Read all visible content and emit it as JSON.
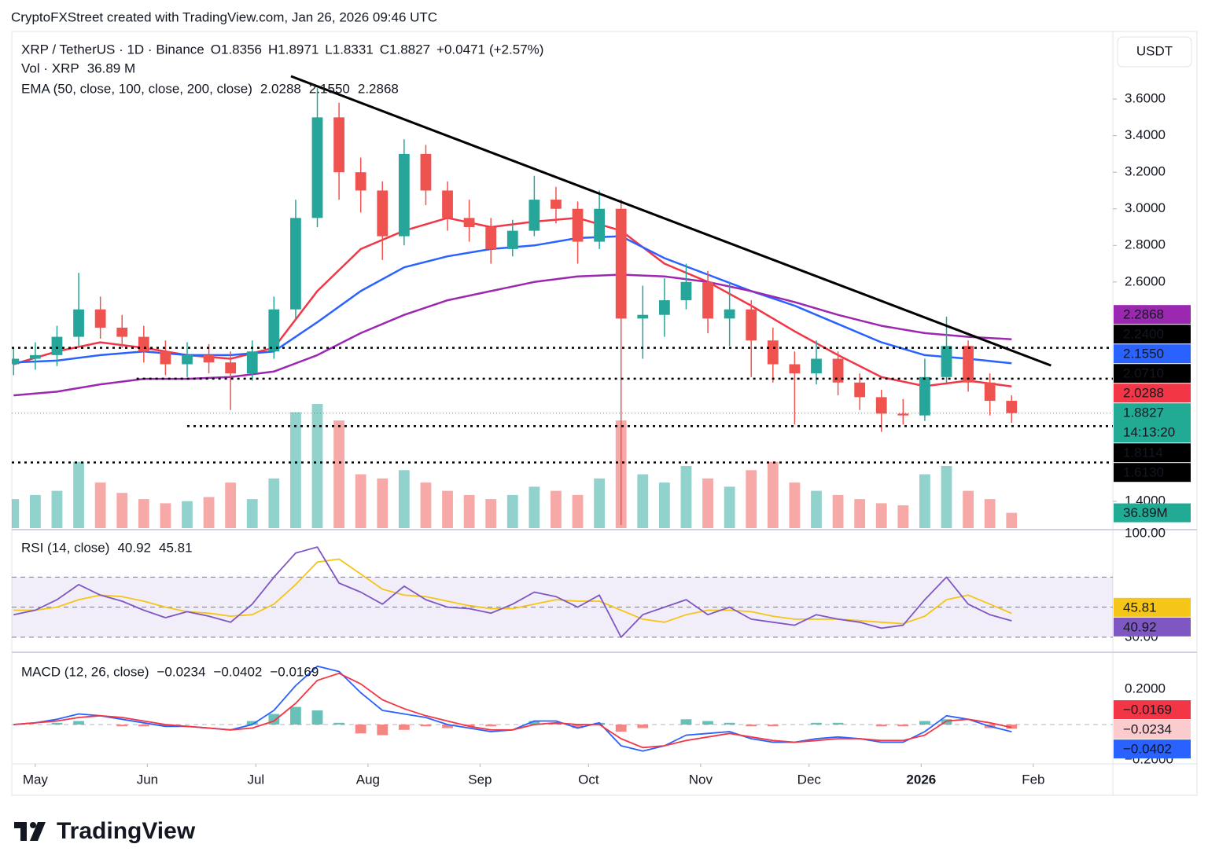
{
  "header": {
    "text": "CryptoFXStreet created with TradingView.com, Jan 26, 2026 09:46 UTC"
  },
  "footer": {
    "logo_text": "TradingView"
  },
  "chart_data": [
    {
      "type": "candlestick",
      "title": "XRP / TetherUS · 1D · Binance",
      "ohlc": [
        {
          "key": "O",
          "value": 1.8356
        },
        {
          "key": "H",
          "value": 1.8971
        },
        {
          "key": "L",
          "value": 1.8331
        },
        {
          "key": "C",
          "value": 1.8827
        }
      ],
      "change": {
        "value": 0.0471,
        "label": "+0.0471"
      },
      "change_pct": {
        "value": 2.57,
        "label": "(+2.57%)"
      },
      "currency": "USDT",
      "countdown": "14:13:20",
      "last_price": {
        "value": 1.8827,
        "label": "1.8827"
      },
      "up_color": "#26a69a",
      "down_color": "#ef5350",
      "legend_color": "#089981",
      "last_color": "#22ab94",
      "grid": false,
      "xlim": [
        -6.5,
        298
      ],
      "xticks": [
        {
          "value": 0,
          "label": "May"
        },
        {
          "value": 31,
          "label": "Jun"
        },
        {
          "value": 61,
          "label": "Jul"
        },
        {
          "value": 92,
          "label": "Aug"
        },
        {
          "value": 123,
          "label": "Sep"
        },
        {
          "value": 153,
          "label": "Oct"
        },
        {
          "value": 184,
          "label": "Nov"
        },
        {
          "value": 214,
          "label": "Dec"
        },
        {
          "value": 245,
          "label": "2026"
        },
        {
          "value": 276,
          "label": "Feb"
        }
      ],
      "ylim": [
        1.254,
        3.97
      ],
      "yticks": [
        {
          "value": 1.4,
          "label": "1.4000"
        },
        {
          "value": 2.6,
          "label": "2.6000"
        },
        {
          "value": 2.8,
          "label": "2.8000"
        },
        {
          "value": 3.0,
          "label": "3.0000"
        },
        {
          "value": 3.2,
          "label": "3.2000"
        },
        {
          "value": 3.4,
          "label": "3.4000"
        },
        {
          "value": 3.6,
          "label": "3.6000"
        }
      ],
      "x": [
        -6,
        0,
        6,
        12,
        18,
        24,
        30,
        36,
        42,
        48,
        54,
        60,
        66,
        72,
        78,
        84,
        90,
        96,
        102,
        108,
        114,
        120,
        126,
        132,
        138,
        144,
        150,
        156,
        162,
        168,
        174,
        180,
        186,
        192,
        198,
        204,
        210,
        216,
        222,
        228,
        234,
        240,
        246,
        252,
        258,
        264,
        270
      ],
      "open": [
        2.15,
        2.18,
        2.2,
        2.3,
        2.45,
        2.35,
        2.3,
        2.22,
        2.15,
        2.2,
        2.16,
        2.1,
        2.22,
        2.45,
        2.95,
        3.5,
        3.2,
        3.1,
        2.85,
        3.3,
        3.1,
        2.95,
        2.9,
        2.78,
        2.88,
        3.05,
        3.0,
        2.82,
        3.0,
        2.4,
        2.42,
        2.5,
        2.6,
        2.4,
        2.45,
        2.28,
        2.15,
        2.1,
        2.18,
        2.05,
        1.97,
        1.88,
        1.87,
        2.08,
        2.25,
        2.05,
        1.95
      ],
      "high": [
        2.24,
        2.27,
        2.36,
        2.65,
        2.52,
        2.42,
        2.36,
        2.28,
        2.27,
        2.26,
        2.22,
        2.28,
        2.52,
        3.05,
        3.66,
        3.58,
        3.28,
        3.15,
        3.38,
        3.35,
        3.15,
        3.05,
        2.95,
        2.94,
        3.18,
        3.12,
        3.04,
        3.1,
        3.05,
        2.58,
        2.62,
        2.7,
        2.66,
        2.6,
        2.5,
        2.35,
        2.22,
        2.28,
        2.22,
        2.1,
        2.01,
        1.96,
        2.18,
        2.41,
        2.28,
        2.1,
        1.98
      ],
      "low": [
        2.09,
        2.12,
        2.14,
        2.25,
        2.29,
        2.24,
        2.16,
        2.09,
        2.08,
        2.1,
        1.9,
        2.06,
        2.18,
        2.4,
        2.9,
        3.05,
        2.98,
        2.72,
        2.8,
        3.02,
        2.88,
        2.82,
        2.7,
        2.74,
        2.85,
        2.92,
        2.7,
        2.78,
        1.27,
        2.18,
        2.3,
        2.45,
        2.32,
        2.25,
        2.08,
        2.05,
        1.82,
        2.04,
        1.98,
        1.9,
        1.78,
        1.82,
        1.84,
        2.05,
        2.0,
        1.87,
        1.83
      ],
      "close": [
        2.18,
        2.2,
        2.3,
        2.45,
        2.35,
        2.3,
        2.22,
        2.15,
        2.2,
        2.16,
        2.1,
        2.22,
        2.45,
        2.95,
        3.5,
        3.2,
        3.1,
        2.85,
        3.3,
        3.1,
        2.95,
        2.9,
        2.78,
        2.88,
        3.05,
        3.0,
        2.82,
        3.0,
        2.4,
        2.42,
        2.5,
        2.6,
        2.4,
        2.45,
        2.28,
        2.15,
        2.1,
        2.18,
        2.05,
        1.97,
        1.88,
        1.87,
        2.08,
        2.25,
        2.05,
        1.95,
        1.8827
      ],
      "volume": {
        "title": "Vol · XRP",
        "last": {
          "value": 36.89,
          "label": "36.89 M"
        },
        "axis_label": {
          "value": 36.89,
          "label": "36.89M"
        },
        "vlim": [
          0,
          1200
        ],
        "values": [
          70,
          80,
          90,
          160,
          110,
          85,
          70,
          60,
          65,
          75,
          110,
          70,
          120,
          280,
          300,
          260,
          130,
          120,
          140,
          110,
          90,
          80,
          70,
          80,
          100,
          90,
          80,
          120,
          260,
          130,
          110,
          150,
          120,
          100,
          140,
          160,
          110,
          90,
          80,
          70,
          60,
          55,
          130,
          150,
          90,
          70,
          36.89
        ]
      },
      "ema": {
        "title": "EMA (50, close, 100, close, 200, close)",
        "x": [
          -6,
          6,
          18,
          30,
          42,
          54,
          66,
          78,
          90,
          102,
          114,
          126,
          138,
          150,
          162,
          174,
          186,
          198,
          210,
          222,
          234,
          246,
          258,
          270
        ],
        "series": [
          {
            "color": "#f23645",
            "last": {
              "value": 2.0288,
              "label": "2.0288"
            },
            "values": [
              2.15,
              2.22,
              2.27,
              2.24,
              2.2,
              2.18,
              2.24,
              2.55,
              2.78,
              2.88,
              2.95,
              2.9,
              2.93,
              2.95,
              2.88,
              2.7,
              2.6,
              2.47,
              2.33,
              2.2,
              2.08,
              2.03,
              2.06,
              2.0288
            ]
          },
          {
            "color": "#2962ff",
            "last": {
              "value": 2.155,
              "label": "2.1550"
            },
            "values": [
              2.16,
              2.17,
              2.2,
              2.22,
              2.2,
              2.2,
              2.22,
              2.38,
              2.55,
              2.68,
              2.74,
              2.78,
              2.8,
              2.84,
              2.85,
              2.73,
              2.64,
              2.55,
              2.47,
              2.37,
              2.27,
              2.2,
              2.18,
              2.155
            ]
          },
          {
            "color": "#9c27b0",
            "last": {
              "value": 2.2868,
              "label": "2.2868"
            },
            "values": [
              1.98,
              2.0,
              2.04,
              2.07,
              2.07,
              2.08,
              2.11,
              2.2,
              2.32,
              2.42,
              2.5,
              2.55,
              2.6,
              2.63,
              2.64,
              2.63,
              2.6,
              2.55,
              2.49,
              2.42,
              2.36,
              2.32,
              2.3,
              2.2868
            ]
          }
        ]
      },
      "level_color": "#000000",
      "levels": [
        {
          "value": 2.24,
          "label": "2.2400",
          "from": -6.5
        },
        {
          "value": 2.071,
          "label": "2.0710",
          "from": 28
        },
        {
          "value": 1.8114,
          "label": "1.8114",
          "from": 42
        },
        {
          "value": 1.613,
          "label": "1.6130",
          "from": -6.5
        }
      ],
      "trendline": {
        "x": [
          70.7,
          280.9
        ],
        "y": [
          3.725,
          2.143
        ]
      }
    },
    {
      "type": "line",
      "title": "RSI (14, close)",
      "ylim": [
        20,
        100
      ],
      "yticks": [
        {
          "value": 100,
          "label": "100.00"
        },
        {
          "value": 30,
          "label": "30.00"
        }
      ],
      "levels": [
        70,
        50,
        30
      ],
      "band_color": "#7e57c2",
      "x": [
        -6,
        0,
        6,
        12,
        18,
        24,
        30,
        36,
        42,
        48,
        54,
        60,
        66,
        72,
        78,
        84,
        90,
        96,
        102,
        108,
        114,
        120,
        126,
        132,
        138,
        144,
        150,
        156,
        162,
        168,
        174,
        180,
        186,
        192,
        198,
        204,
        210,
        216,
        222,
        228,
        234,
        240,
        246,
        252,
        258,
        264,
        270
      ],
      "series": [
        {
          "color": "#7e57c2",
          "last": {
            "value": 40.92,
            "label": "40.92"
          },
          "values": [
            45,
            48,
            55,
            65,
            58,
            54,
            48,
            43,
            47,
            44,
            40,
            52,
            70,
            86,
            90,
            66,
            60,
            52,
            64,
            55,
            50,
            49,
            46,
            52,
            60,
            57,
            50,
            58,
            30,
            45,
            50,
            55,
            45,
            50,
            42,
            40,
            38,
            45,
            42,
            40,
            36,
            38,
            55,
            70,
            52,
            45,
            40.92
          ]
        },
        {
          "color": "#f5c518",
          "last": {
            "value": 45.81,
            "label": "45.81"
          },
          "values": [
            48,
            48,
            50,
            55,
            58,
            57,
            54,
            50,
            47,
            46,
            44,
            45,
            52,
            65,
            80,
            82,
            72,
            62,
            58,
            57,
            54,
            51,
            49,
            49,
            52,
            55,
            54,
            54,
            48,
            42,
            40,
            45,
            48,
            48,
            47,
            44,
            42,
            42,
            42,
            41,
            40,
            39,
            44,
            55,
            58,
            52,
            45.81
          ]
        }
      ]
    },
    {
      "type": "macd",
      "title": "MACD (12, 26, close)",
      "ylim": [
        -0.222,
        0.409
      ],
      "yticks": [
        {
          "value": 0.2,
          "label": "0.2000"
        },
        {
          "value": -0.2,
          "label": "−0.2000"
        }
      ],
      "x": [
        -6,
        0,
        6,
        12,
        18,
        24,
        30,
        36,
        42,
        48,
        54,
        60,
        66,
        72,
        78,
        84,
        90,
        96,
        102,
        108,
        114,
        120,
        126,
        132,
        138,
        144,
        150,
        156,
        162,
        168,
        174,
        180,
        186,
        192,
        198,
        204,
        210,
        216,
        222,
        228,
        234,
        240,
        246,
        252,
        258,
        264,
        270
      ],
      "histogram": {
        "up_color": "#26a69a",
        "down_color": "#ef5350",
        "last_color": "#fccbcd",
        "last": {
          "value": -0.0234,
          "label": "−0.0234"
        },
        "values": [
          0,
          0,
          0.01,
          0.02,
          0,
          -0.01,
          -0.01,
          -0.01,
          0,
          0,
          0,
          0.02,
          0.06,
          0.1,
          0.08,
          0.01,
          -0.05,
          -0.06,
          -0.03,
          -0.01,
          -0.02,
          -0.01,
          -0.01,
          0,
          0.02,
          0.01,
          -0.02,
          0.01,
          -0.04,
          -0.02,
          0,
          0.03,
          0.02,
          0.01,
          -0.01,
          -0.01,
          0,
          0.01,
          0.01,
          0,
          -0.01,
          -0.01,
          0.02,
          0.03,
          0,
          -0.02,
          -0.0234
        ]
      },
      "series": [
        {
          "color": "#2962ff",
          "last": {
            "value": -0.0402,
            "label": "−0.0402"
          },
          "values": [
            0,
            0.01,
            0.03,
            0.06,
            0.05,
            0.03,
            0.01,
            -0.01,
            -0.01,
            -0.02,
            -0.03,
            0,
            0.08,
            0.22,
            0.33,
            0.3,
            0.18,
            0.08,
            0.06,
            0.04,
            0,
            -0.02,
            -0.04,
            -0.03,
            0.02,
            0.02,
            -0.02,
            0.01,
            -0.12,
            -0.15,
            -0.12,
            -0.06,
            -0.05,
            -0.04,
            -0.08,
            -0.1,
            -0.1,
            -0.08,
            -0.07,
            -0.08,
            -0.1,
            -0.1,
            -0.04,
            0.05,
            0.03,
            -0.01,
            -0.0402
          ]
        },
        {
          "color": "#f23645",
          "last": {
            "value": -0.0169,
            "label": "−0.0169"
          },
          "values": [
            0,
            0.01,
            0.02,
            0.04,
            0.05,
            0.04,
            0.02,
            0,
            -0.01,
            -0.02,
            -0.03,
            -0.02,
            0.02,
            0.12,
            0.25,
            0.29,
            0.23,
            0.14,
            0.09,
            0.05,
            0.02,
            -0.01,
            -0.03,
            -0.03,
            0,
            0.01,
            0,
            0,
            -0.08,
            -0.13,
            -0.12,
            -0.09,
            -0.07,
            -0.05,
            -0.07,
            -0.09,
            -0.1,
            -0.09,
            -0.08,
            -0.08,
            -0.09,
            -0.09,
            -0.06,
            0.02,
            0.03,
            0.01,
            -0.0169
          ]
        }
      ]
    }
  ]
}
